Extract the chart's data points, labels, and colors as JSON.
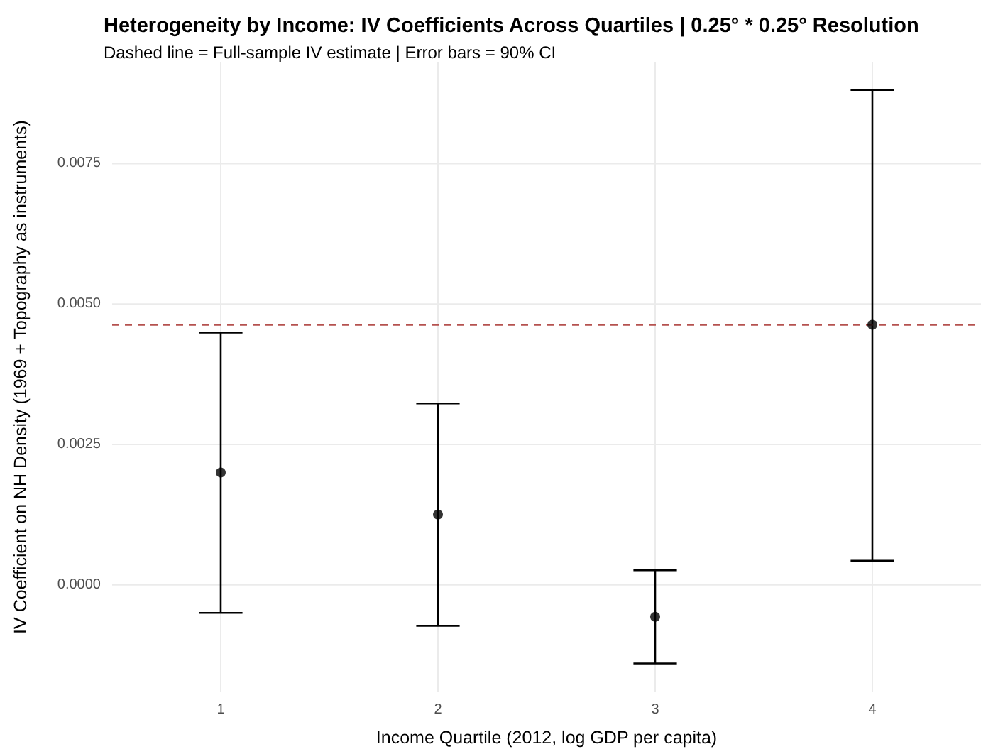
{
  "chart_data": {
    "type": "scatter",
    "title": "Heterogeneity by Income: IV Coefficients Across Quartiles | 0.25° * 0.25° Resolution",
    "subtitle": "Dashed line = Full-sample IV estimate | Error bars = 90% CI",
    "xlabel": "Income Quartile (2012, log GDP per capita)",
    "ylabel": "IV Coefficient on NH Density (1969 + Topography as instruments)",
    "categories": [
      "1",
      "2",
      "3",
      "4"
    ],
    "series": [
      {
        "color": "#000000",
        "values": [
          0.002,
          0.00125,
          -0.00057,
          0.00463
        ],
        "errors": [
          [
            -0.0005,
            0.00449
          ],
          [
            -0.00073,
            0.00323
          ],
          [
            -0.0014,
            0.00026
          ],
          [
            0.00043,
            0.00881
          ]
        ]
      }
    ],
    "ylim": [
      -0.0019,
      0.0093
    ],
    "yticks": [
      {
        "value": 0,
        "label": "0.0000"
      },
      {
        "value": 0.0025,
        "label": "0.0025"
      },
      {
        "value": 0.005,
        "label": "0.0050"
      },
      {
        "value": 0.0075,
        "label": "0.0075"
      }
    ],
    "ref_lines": [
      {
        "axis": "y",
        "value": 0.00463,
        "color": "#b5524f",
        "line_style": "dashed"
      }
    ],
    "grid": true,
    "marker": "circle"
  }
}
